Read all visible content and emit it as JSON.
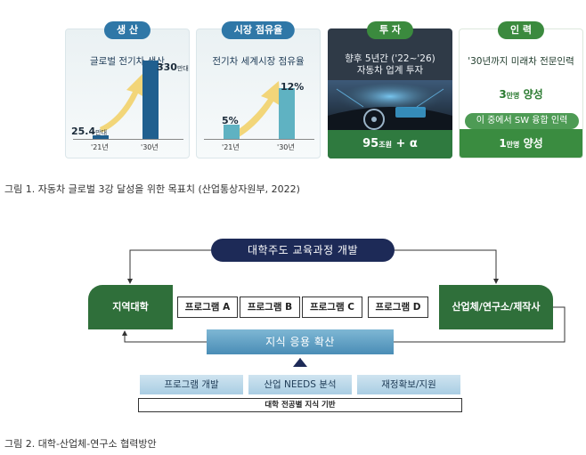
{
  "figure1": {
    "panels": [
      {
        "header": "생 산",
        "subtitle": "글로벌 전기차 생산",
        "bar1_value": "25.4",
        "bar1_unit": "만대",
        "bar2_value": "330",
        "bar2_unit": "만대",
        "year1": "'21년",
        "year2": "'30년",
        "header_color": "#2f77a7"
      },
      {
        "header": "시장 점유율",
        "subtitle": "전기차 세계시장 점유율",
        "bar1_value": "5%",
        "bar2_value": "12%",
        "year1": "'21년",
        "year2": "'30년",
        "header_color": "#2f77a7"
      },
      {
        "header": "투 자",
        "subtitle_line1": "향후 5년간 ('22~'26)",
        "subtitle_line2": "자동차 업계 투자",
        "amount": "95",
        "amount_unit": "조원",
        "amount_suffix": " + α",
        "header_color": "#3b8a3e"
      },
      {
        "header": "인 력",
        "subtitle": "'30년까지 미래차 전문인력",
        "target": "3",
        "target_unit": "만명",
        "target_suffix": " 양성",
        "pill": "이 중에서 SW 융합 인력",
        "sub_target": "1",
        "sub_target_unit": "만명",
        "sub_target_suffix": " 양성",
        "header_color": "#3b8a3e"
      }
    ],
    "caption": "그림 1. 자동차 글로벌 3강 달성을 위한 목표치 (산업통상자원부, 2022)"
  },
  "figure2": {
    "top": "대학주도 교육과정 개발",
    "left": "지역대학",
    "right": "산업체/연구소/제작사",
    "programs": [
      "프로그램 A",
      "프로그램 B",
      "프로그램 C",
      "프로그램 D"
    ],
    "middle": "지식 응용 확산",
    "base": [
      "프로그램 개발",
      "산업 NEEDS 분석",
      "재정확보/지원"
    ],
    "foundation": "대학 전공별 지식 기반",
    "caption": "그림 2. 대학-산업체-연구소 협력방안"
  }
}
